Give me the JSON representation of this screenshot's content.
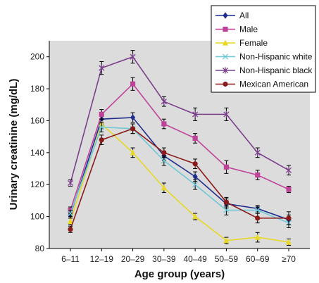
{
  "chart_data": {
    "type": "line",
    "xlabel": "Age group (years)",
    "ylabel": "Urinary creatinine (mg/dL)",
    "categories": [
      "6–11",
      "12–19",
      "20–29",
      "30–39",
      "40–49",
      "50–59",
      "60–69",
      "≥70"
    ],
    "ylim": [
      80,
      210
    ],
    "yticks": [
      80,
      100,
      120,
      140,
      160,
      180,
      200
    ],
    "grid": false,
    "legend_position": "top-right",
    "series": [
      {
        "name": "All",
        "color": "#1f2e8c",
        "marker": "diamond",
        "values": [
          101,
          161,
          162,
          138,
          125,
          108,
          105,
          98
        ],
        "errors": [
          2,
          3,
          3,
          3,
          3,
          3,
          2,
          3
        ]
      },
      {
        "name": "Male",
        "color": "#c0439a",
        "marker": "square",
        "values": [
          104,
          164,
          183,
          158,
          149,
          131,
          126,
          117
        ],
        "errors": [
          2,
          3,
          4,
          3,
          3,
          4,
          3,
          2
        ]
      },
      {
        "name": "Female",
        "color": "#e8d825",
        "marker": "triangle",
        "values": [
          97,
          158,
          140,
          118,
          100,
          85,
          87,
          84
        ],
        "errors": [
          2,
          3,
          3,
          3,
          2,
          2,
          3,
          2
        ]
      },
      {
        "name": "Non-Hispanic white",
        "color": "#6fc8d6",
        "marker": "x",
        "values": [
          102,
          156,
          155,
          135,
          120,
          104,
          104,
          96
        ],
        "errors": [
          2,
          3,
          3,
          3,
          3,
          3,
          2,
          3
        ]
      },
      {
        "name": "Non-Hispanic black",
        "color": "#7b3f8c",
        "marker": "star",
        "values": [
          121,
          193,
          200,
          172,
          164,
          164,
          140,
          129
        ],
        "errors": [
          2,
          4,
          4,
          3,
          4,
          4,
          3,
          3
        ]
      },
      {
        "name": "Mexican American",
        "color": "#8b1a1a",
        "marker": "circle",
        "values": [
          92,
          148,
          155,
          140,
          133,
          109,
          99,
          99
        ],
        "errors": [
          2,
          3,
          3,
          3,
          3,
          3,
          3,
          4
        ]
      }
    ]
  }
}
